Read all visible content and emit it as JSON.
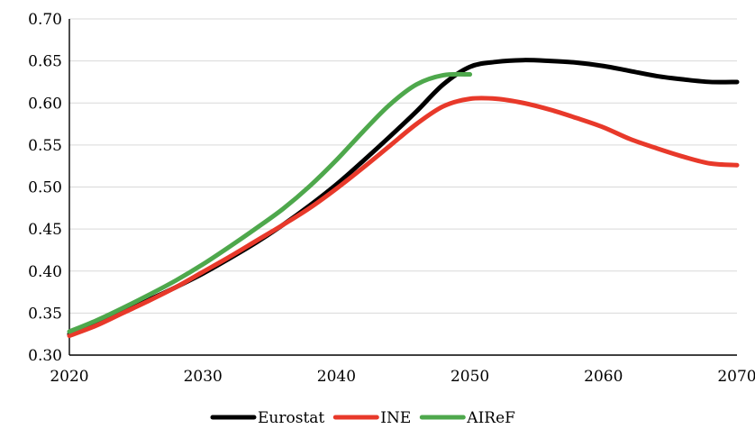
{
  "chart_data": {
    "type": "line",
    "title": "",
    "xlabel": "",
    "ylabel": "",
    "xlim": [
      2020,
      2070
    ],
    "ylim": [
      0.3,
      0.7
    ],
    "x_ticks": [
      2020,
      2030,
      2040,
      2050,
      2060,
      2070
    ],
    "x_tick_labels": [
      "2020",
      "2030",
      "2040",
      "2050",
      "2060",
      "2070"
    ],
    "y_ticks": [
      0.3,
      0.35,
      0.4,
      0.45,
      0.5,
      0.55,
      0.6,
      0.65,
      0.7
    ],
    "y_tick_labels": [
      "0.30",
      "0.35",
      "0.40",
      "0.45",
      "0.50",
      "0.55",
      "0.60",
      "0.65",
      "0.70"
    ],
    "grid": "horizontal",
    "legend_position": "bottom",
    "series": [
      {
        "name": "Eurostat",
        "color": "#000000",
        "x": [
          2020,
          2022,
          2024,
          2026,
          2028,
          2030,
          2032,
          2034,
          2036,
          2038,
          2040,
          2042,
          2044,
          2046,
          2048,
          2050,
          2052,
          2054,
          2056,
          2058,
          2060,
          2062,
          2064,
          2066,
          2068,
          2070
        ],
        "y": [
          0.325,
          0.337,
          0.351,
          0.366,
          0.381,
          0.397,
          0.415,
          0.434,
          0.455,
          0.478,
          0.503,
          0.531,
          0.56,
          0.59,
          0.622,
          0.643,
          0.649,
          0.651,
          0.65,
          0.648,
          0.644,
          0.638,
          0.632,
          0.628,
          0.625,
          0.625
        ]
      },
      {
        "name": "INE",
        "color": "#e8392a",
        "x": [
          2020,
          2022,
          2024,
          2026,
          2028,
          2030,
          2032,
          2034,
          2036,
          2038,
          2040,
          2042,
          2044,
          2046,
          2048,
          2050,
          2052,
          2054,
          2056,
          2058,
          2060,
          2062,
          2064,
          2066,
          2068,
          2070
        ],
        "y": [
          0.323,
          0.335,
          0.35,
          0.365,
          0.381,
          0.399,
          0.417,
          0.436,
          0.455,
          0.475,
          0.498,
          0.523,
          0.549,
          0.575,
          0.596,
          0.605,
          0.605,
          0.6,
          0.592,
          0.582,
          0.571,
          0.557,
          0.546,
          0.536,
          0.528,
          0.526
        ]
      },
      {
        "name": "AIReF",
        "color": "#4ea84c",
        "x": [
          2020,
          2022,
          2024,
          2026,
          2028,
          2030,
          2032,
          2034,
          2036,
          2038,
          2040,
          2042,
          2044,
          2046,
          2048,
          2050
        ],
        "y": [
          0.328,
          0.341,
          0.356,
          0.372,
          0.389,
          0.408,
          0.429,
          0.451,
          0.474,
          0.501,
          0.532,
          0.566,
          0.598,
          0.622,
          0.633,
          0.634
        ]
      }
    ]
  }
}
